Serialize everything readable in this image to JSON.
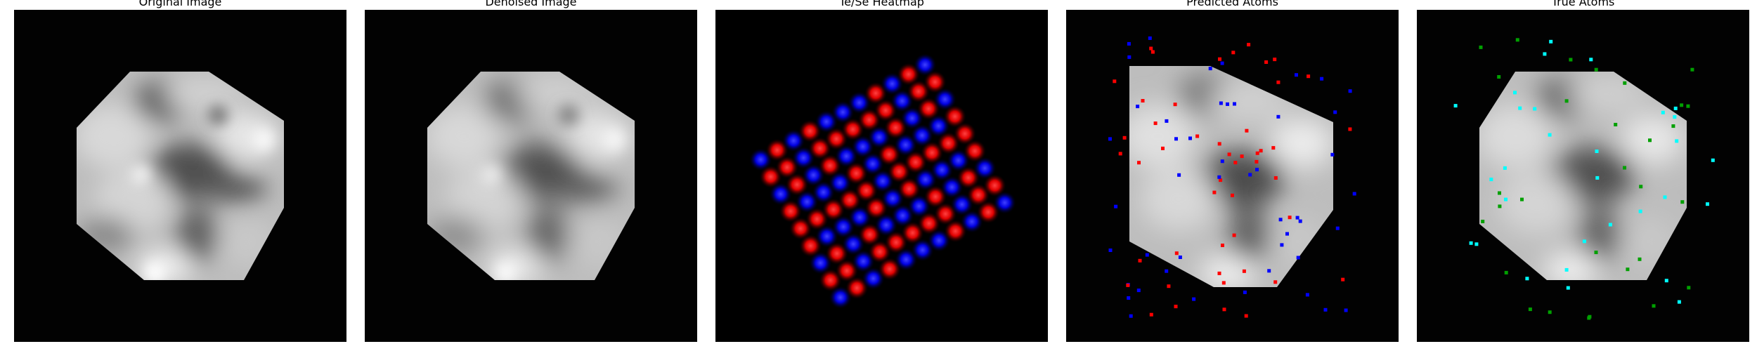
{
  "panels": [
    {
      "title": "Original Image"
    },
    {
      "title": "Denoised Image"
    },
    {
      "title": "Te/Se Heatmap"
    },
    {
      "title": "Predicted Atoms"
    },
    {
      "title": "True Atoms"
    }
  ],
  "colors": {
    "background": "#000000",
    "te": "#ff1a1a",
    "se": "#1a1aff",
    "pred_red": "#ff0000",
    "pred_blue": "#0000ff",
    "true_cyan": "#00ffff",
    "true_green": "#00a000"
  }
}
